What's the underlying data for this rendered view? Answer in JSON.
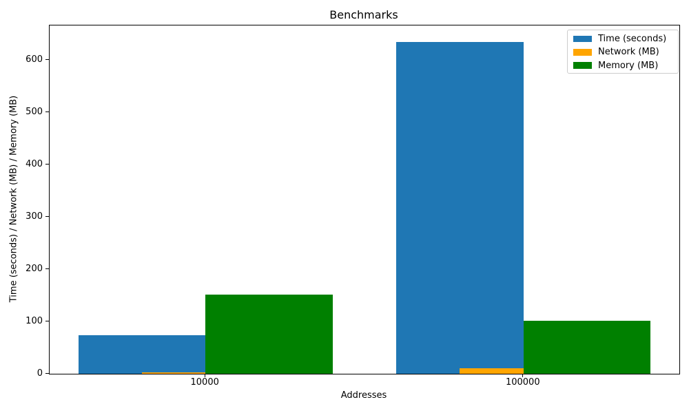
{
  "chart_data": {
    "type": "bar",
    "title": "Benchmarks",
    "xlabel": "Addresses",
    "ylabel": "Time (seconds) / Network (MB) / Memory (MB)",
    "categories": [
      "10000",
      "100000"
    ],
    "series": [
      {
        "name": "Time (seconds)",
        "color": "#1f77b4",
        "values": [
          74,
          635
        ]
      },
      {
        "name": "Network (MB)",
        "color": "#ffa500",
        "values": [
          2,
          10
        ]
      },
      {
        "name": "Memory (MB)",
        "color": "#008000",
        "values": [
          152,
          101
        ]
      }
    ],
    "yticks": [
      0,
      100,
      200,
      300,
      400,
      500,
      600
    ],
    "ylim": [
      0,
      666
    ],
    "xlim": [
      -0.49,
      1.49
    ],
    "bar_width_units": 0.4,
    "bar_offset_units": 0.2,
    "grid": false,
    "legend_position": "upper-right",
    "plot_background": "#ffffff",
    "spine_color": "#000000",
    "legend_border_color": "#cccccc"
  }
}
